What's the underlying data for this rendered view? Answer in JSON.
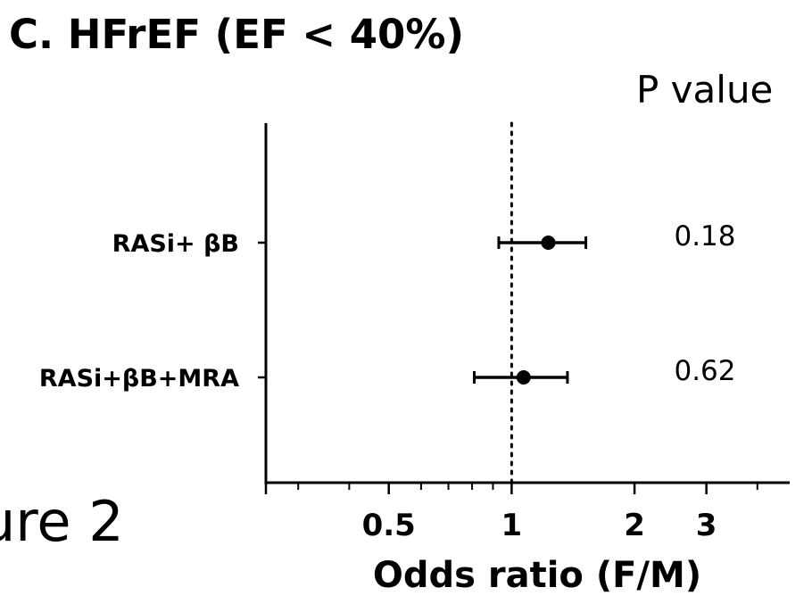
{
  "panel_title": "C. HFrEF (EF < 40%)",
  "side_text": "ure 2",
  "p_value_header": "P value",
  "chart_data": {
    "type": "forest",
    "xlabel": "Odds ratio (F/M)",
    "x_scale": "log",
    "xlim": [
      0.25,
      4.8
    ],
    "x_ticks": [
      0.5,
      1,
      2,
      3
    ],
    "x_tick_labels": [
      "0.5",
      "1",
      "2",
      "3"
    ],
    "x_minor_ticks": [
      0.3,
      0.4,
      0.6,
      0.7,
      0.8,
      0.9,
      4
    ],
    "reference_line": 1,
    "rows": [
      {
        "label": "RASi+ βB",
        "or": 1.23,
        "ci_low": 0.93,
        "ci_high": 1.52,
        "p_value": "0.18"
      },
      {
        "label": "RASi+βB+MRA",
        "or": 1.07,
        "ci_low": 0.81,
        "ci_high": 1.37,
        "p_value": "0.62"
      }
    ]
  }
}
